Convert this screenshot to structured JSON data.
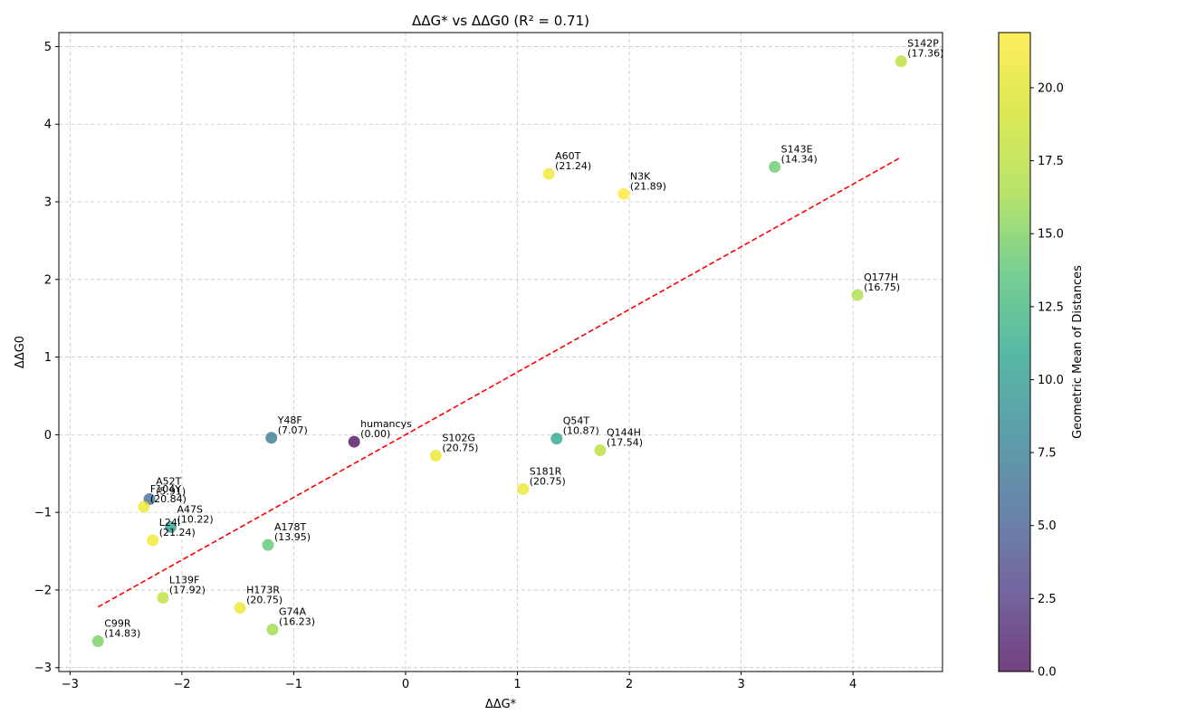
{
  "chart_data": {
    "type": "scatter",
    "title": "ΔΔG* vs ΔΔG0 (R² = 0.71)",
    "xlabel": "ΔΔG*",
    "ylabel": "ΔΔG0",
    "xlim": [
      -3.1,
      4.8
    ],
    "ylim": [
      -3.05,
      5.18
    ],
    "xticks": [
      -3,
      -2,
      -1,
      0,
      1,
      2,
      3,
      4
    ],
    "xtick_labels": [
      "−3",
      "−2",
      "−1",
      "0",
      "1",
      "2",
      "3",
      "4"
    ],
    "yticks": [
      -3,
      -2,
      -1,
      0,
      1,
      2,
      3,
      4,
      5
    ],
    "ytick_labels": [
      "−3",
      "−2",
      "−1",
      "0",
      "1",
      "2",
      "3",
      "4",
      "5"
    ],
    "grid": true,
    "colorbar": {
      "label": "Geometric Mean of Distances",
      "min": 0.0,
      "max": 21.89,
      "ticks": [
        0.0,
        2.5,
        5.0,
        7.5,
        10.0,
        12.5,
        15.0,
        17.5,
        20.0
      ],
      "tick_labels": [
        "0.0",
        "2.5",
        "5.0",
        "7.5",
        "10.0",
        "12.5",
        "15.0",
        "17.5",
        "20.0"
      ],
      "colormap": "viridis"
    },
    "trendline": {
      "style": "dashed",
      "color": "#ff0000",
      "x_range": [
        -2.75,
        4.43
      ],
      "slope": 0.807,
      "intercept": 0.0
    },
    "points": [
      {
        "name": "S142P",
        "value_label": "(17.36)",
        "x": 4.43,
        "y": 4.81,
        "c": 17.36
      },
      {
        "name": "S143E",
        "value_label": "(14.34)",
        "x": 3.3,
        "y": 3.45,
        "c": 14.34
      },
      {
        "name": "A60T",
        "value_label": "(21.24)",
        "x": 1.28,
        "y": 3.36,
        "c": 21.24
      },
      {
        "name": "N3K",
        "value_label": "(21.89)",
        "x": 1.95,
        "y": 3.1,
        "c": 21.89
      },
      {
        "name": "Q177H",
        "value_label": "(16.75)",
        "x": 4.04,
        "y": 1.8,
        "c": 16.75
      },
      {
        "name": "Y48F",
        "value_label": "(7.07)",
        "x": -1.2,
        "y": -0.04,
        "c": 7.07
      },
      {
        "name": "humancys",
        "value_label": "(0.00)",
        "x": -0.46,
        "y": -0.09,
        "c": 0.0
      },
      {
        "name": "S102G",
        "value_label": "(20.75)",
        "x": 0.27,
        "y": -0.27,
        "c": 20.75
      },
      {
        "name": "Q54T",
        "value_label": "(10.87)",
        "x": 1.35,
        "y": -0.05,
        "c": 10.87
      },
      {
        "name": "Q144H",
        "value_label": "(17.54)",
        "x": 1.74,
        "y": -0.2,
        "c": 17.54
      },
      {
        "name": "S181R",
        "value_label": "(20.75)",
        "x": 1.05,
        "y": -0.7,
        "c": 20.75
      },
      {
        "name": "A52T",
        "value_label": "(5.91)",
        "x": -2.29,
        "y": -0.83,
        "c": 5.91
      },
      {
        "name": "F104Y",
        "value_label": "(20.84)",
        "x": -2.34,
        "y": -0.93,
        "c": 20.84
      },
      {
        "name": "A47S",
        "value_label": "(10.22)",
        "x": -2.1,
        "y": -1.19,
        "c": 10.22
      },
      {
        "name": "L24I",
        "value_label": "(21.24)",
        "x": -2.26,
        "y": -1.36,
        "c": 21.24
      },
      {
        "name": "A178T",
        "value_label": "(13.95)",
        "x": -1.23,
        "y": -1.42,
        "c": 13.95
      },
      {
        "name": "L139F",
        "value_label": "(17.92)",
        "x": -2.17,
        "y": -2.1,
        "c": 17.92
      },
      {
        "name": "H173R",
        "value_label": "(20.75)",
        "x": -1.48,
        "y": -2.23,
        "c": 20.75
      },
      {
        "name": "G74A",
        "value_label": "(16.23)",
        "x": -1.19,
        "y": -2.51,
        "c": 16.23
      },
      {
        "name": "C99R",
        "value_label": "(14.83)",
        "x": -2.75,
        "y": -2.66,
        "c": 14.83
      }
    ]
  }
}
